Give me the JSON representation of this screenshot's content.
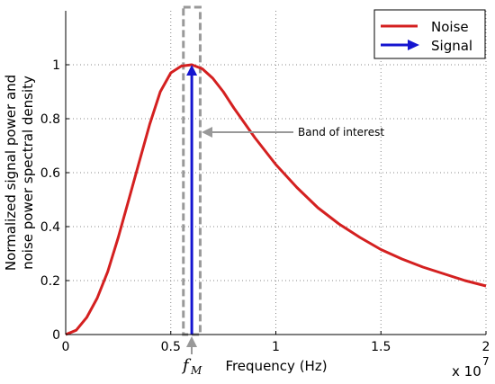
{
  "chart_data": {
    "type": "line",
    "xlabel": "Frequency (Hz)",
    "ylabel_lines": [
      "Normalized signal power and",
      "noise power spectral density"
    ],
    "x_multiplier_base": "x 10",
    "x_multiplier_exp": "7",
    "xlim": [
      0,
      20000000
    ],
    "ylim": [
      0,
      1.2
    ],
    "x_ticks": [
      0,
      5000000,
      10000000,
      15000000,
      20000000
    ],
    "x_tick_labels": [
      "0",
      "0.5",
      "1",
      "1.5",
      "2"
    ],
    "y_ticks": [
      0,
      0.2,
      0.4,
      0.6,
      0.8,
      1.0
    ],
    "y_tick_labels": [
      "0",
      "0.2",
      "0.4",
      "0.6",
      "0.8",
      "1"
    ],
    "grid": true,
    "legend_position": "top-right",
    "series": [
      {
        "name": "Noise",
        "color": "#d42020",
        "x": [
          0,
          500000,
          1000000,
          1500000,
          2000000,
          2500000,
          3000000,
          3500000,
          4000000,
          4500000,
          5000000,
          5500000,
          6000000,
          6500000,
          7000000,
          7500000,
          8000000,
          9000000,
          10000000,
          11000000,
          12000000,
          13000000,
          14000000,
          15000000,
          16000000,
          17000000,
          18000000,
          19000000,
          20000000
        ],
        "values": [
          0,
          0.016,
          0.063,
          0.135,
          0.233,
          0.36,
          0.5,
          0.64,
          0.78,
          0.9,
          0.97,
          0.995,
          1.0,
          0.985,
          0.95,
          0.9,
          0.84,
          0.73,
          0.63,
          0.545,
          0.47,
          0.41,
          0.36,
          0.315,
          0.28,
          0.25,
          0.225,
          0.2,
          0.18
        ]
      },
      {
        "name": "Signal",
        "color": "#1515d0",
        "type": "arrow",
        "x": [
          6000000
        ],
        "values": [
          1.0
        ]
      }
    ],
    "band_of_interest": {
      "label": "Band of interest",
      "x_range": [
        5600000,
        6400000
      ],
      "color": "#999999"
    },
    "marker_label": "f",
    "marker_subscript": "M"
  }
}
